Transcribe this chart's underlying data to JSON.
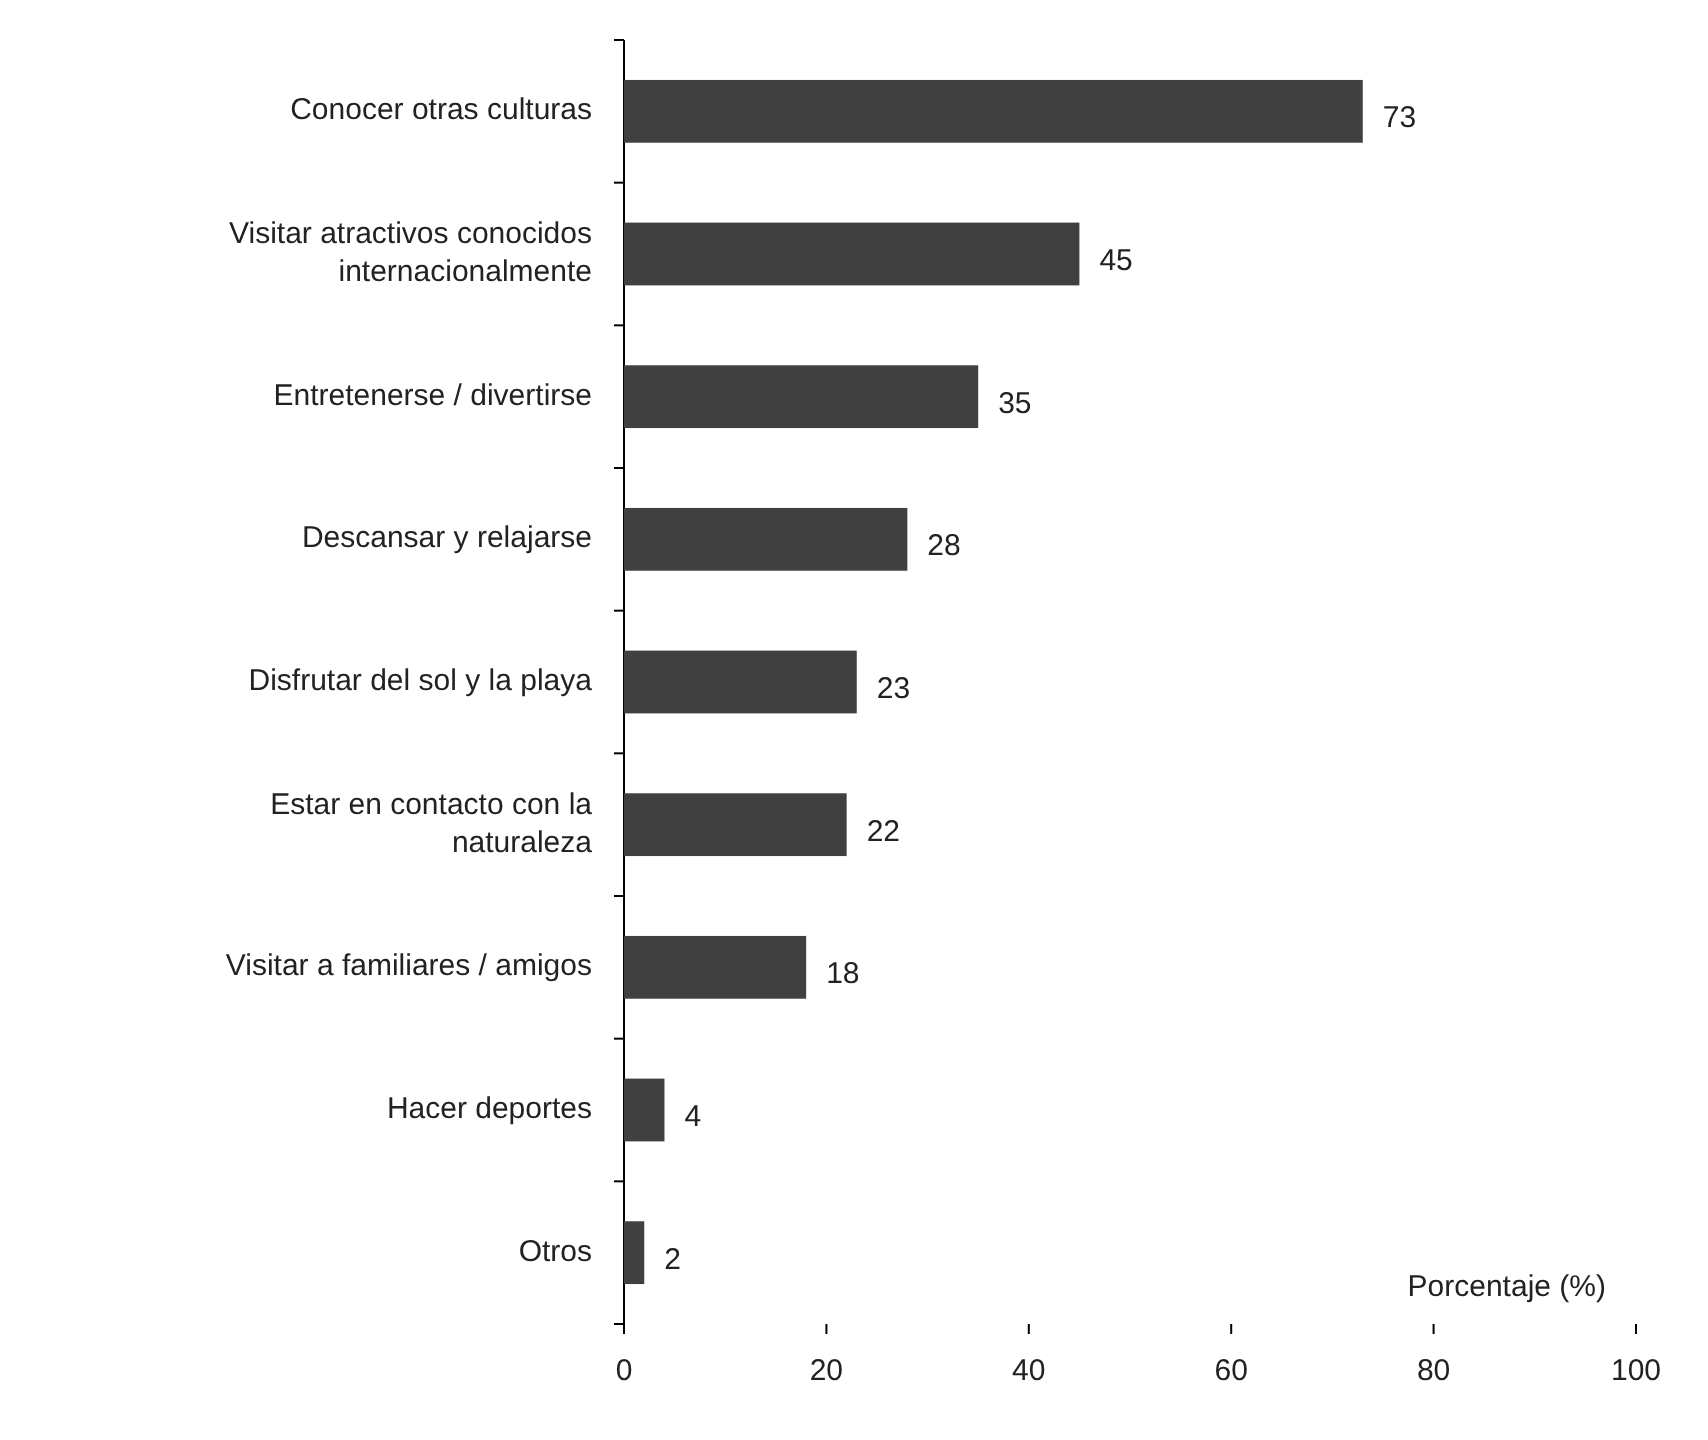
{
  "chart_data": {
    "type": "bar",
    "orientation": "horizontal",
    "xlabel": "Porcentaje (%)",
    "categories": [
      "Conocer otras culturas",
      "Visitar atractivos conocidos internacionalmente",
      "Entretenerse / divertirse",
      "Descansar y relajarse",
      "Disfrutar del sol y la playa",
      "Estar en contacto con la naturaleza",
      "Visitar a familiares / amigos",
      "Hacer deportes",
      "Otros"
    ],
    "values": [
      73,
      45,
      35,
      28,
      23,
      22,
      18,
      4,
      2
    ],
    "color": "#404040",
    "xlim": [
      0,
      100
    ],
    "xticks": [
      0,
      20,
      40,
      60,
      80,
      100
    ],
    "data_labels": true,
    "grid": false
  }
}
